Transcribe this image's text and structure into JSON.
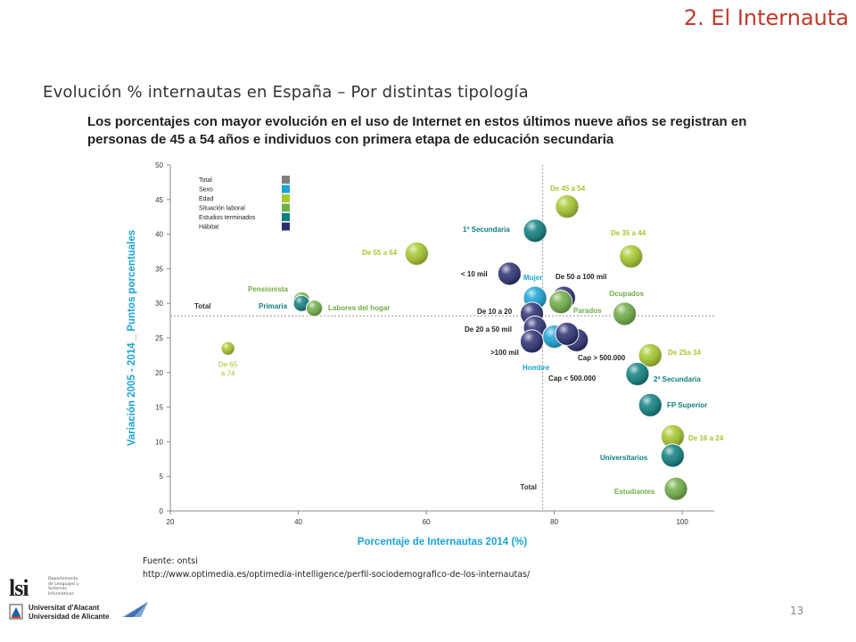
{
  "header": {
    "section_title": "2. El Internauta",
    "slide_title": "Evolución % internautas en España – Por distintas tipología",
    "subtitle": "Los porcentajes con mayor evolución en el uso de Internet en estos últimos nueve años se registran en personas de 45 a 54 años e individuos con primera etapa de educación secundaria"
  },
  "footer": {
    "source_line1": "Fuente: ontsi",
    "source_line2": "http://www.optimedia.es/optimedia-intelligence/perfil-sociodemografico-de-los-internautas/",
    "page_number": "13",
    "logo_lsi": "lsi",
    "logo_lsi_dept": "Departamento de Lenguajes y Sistemas Informáticos",
    "logo_ua_line1": "Universitat d'Alacant",
    "logo_ua_line2": "Universidad de Alicante"
  },
  "colors": {
    "accent": "#c0392b",
    "axis_label": "#1aa3d6",
    "Total": "#7f7f7f",
    "Sexo": "#1aa3d6",
    "Edad": "#a6c82d",
    "Situación laboral": "#70ad47",
    "Estudios terminados": "#0f7f7f",
    "Hábitat": "#2b2f72"
  },
  "chart_data": {
    "type": "scatter",
    "xlabel": "Porcentaje de Internautas 2014 (%)",
    "ylabel": "Variación 2005 - 2014 _ Puntos porcentuales",
    "xlim": [
      20,
      105
    ],
    "ylim": [
      0,
      50
    ],
    "xticks": [
      20,
      40,
      60,
      80,
      100
    ],
    "yticks": [
      0,
      5,
      10,
      15,
      20,
      25,
      30,
      35,
      40,
      45,
      50
    ],
    "grid": false,
    "legend_position": "top-left",
    "legend": [
      "Total",
      "Sexo",
      "Edad",
      "Situación laboral",
      "Estudios terminados",
      "Hábitat"
    ],
    "reference_lines": {
      "x": 78.2,
      "y": 28.2,
      "x_label": "Total",
      "y_label": "Total"
    },
    "points": [
      {
        "label": "De 45 a 54",
        "category": "Edad",
        "x": 82,
        "y": 44
      },
      {
        "label": "1ª Secundaria",
        "category": "Estudios terminados",
        "x": 77,
        "y": 40.5
      },
      {
        "label": "De 35 a 44",
        "category": "Edad",
        "x": 92,
        "y": 36.8
      },
      {
        "label": "De 55 a 64",
        "category": "Edad",
        "x": 58.5,
        "y": 37.2
      },
      {
        "label": "< 10 mil",
        "category": "Hábitat",
        "x": 73,
        "y": 34.3
      },
      {
        "label": "Mujer",
        "category": "Sexo",
        "x": 77,
        "y": 30.8
      },
      {
        "label": "De 50 a 100 mil",
        "category": "Hábitat",
        "x": 81.5,
        "y": 30.8
      },
      {
        "label": "Ocupados",
        "category": "Situación laboral",
        "x": 91,
        "y": 28.5
      },
      {
        "label": "Parados",
        "category": "Situación laboral",
        "x": 81,
        "y": 30.2
      },
      {
        "label": "Pensionista",
        "category": "Situación laboral",
        "x": 40.5,
        "y": 30.5
      },
      {
        "label": "Primaria",
        "category": "Estudios terminados",
        "x": 40.5,
        "y": 30
      },
      {
        "label": "Labores del hogar",
        "category": "Situación laboral",
        "x": 42.5,
        "y": 29.3
      },
      {
        "label": "De 10 a 20",
        "category": "Hábitat",
        "x": 76.5,
        "y": 28.5
      },
      {
        "label": "De 20 a 50 mil",
        "category": "Hábitat",
        "x": 77,
        "y": 26.5
      },
      {
        "label": ">100 mil",
        "category": "Hábitat",
        "x": 76.5,
        "y": 24.5
      },
      {
        "label": "Hombre",
        "category": "Sexo",
        "x": 80,
        "y": 25.2
      },
      {
        "label": "Cap > 500.000",
        "category": "Hábitat",
        "x": 83.5,
        "y": 24.7
      },
      {
        "label": "Cap < 500.000",
        "category": "Hábitat",
        "x": 82,
        "y": 25.6
      },
      {
        "label": "De 25a 34",
        "category": "Edad",
        "x": 95,
        "y": 22.5
      },
      {
        "label": "2ª Secundaria",
        "category": "Estudios terminados",
        "x": 93,
        "y": 19.8
      },
      {
        "label": "FP Superior",
        "category": "Estudios terminados",
        "x": 95,
        "y": 15.3
      },
      {
        "label": "De 16 a 24",
        "category": "Edad",
        "x": 98.5,
        "y": 10.8
      },
      {
        "label": "Universitarios",
        "category": "Estudios terminados",
        "x": 98.5,
        "y": 8
      },
      {
        "label": "Estudiantes",
        "category": "Situación laboral",
        "x": 99,
        "y": 3.2
      },
      {
        "label": "De 65 a 74",
        "category": "Edad",
        "x": 29,
        "y": 23.5
      }
    ]
  }
}
